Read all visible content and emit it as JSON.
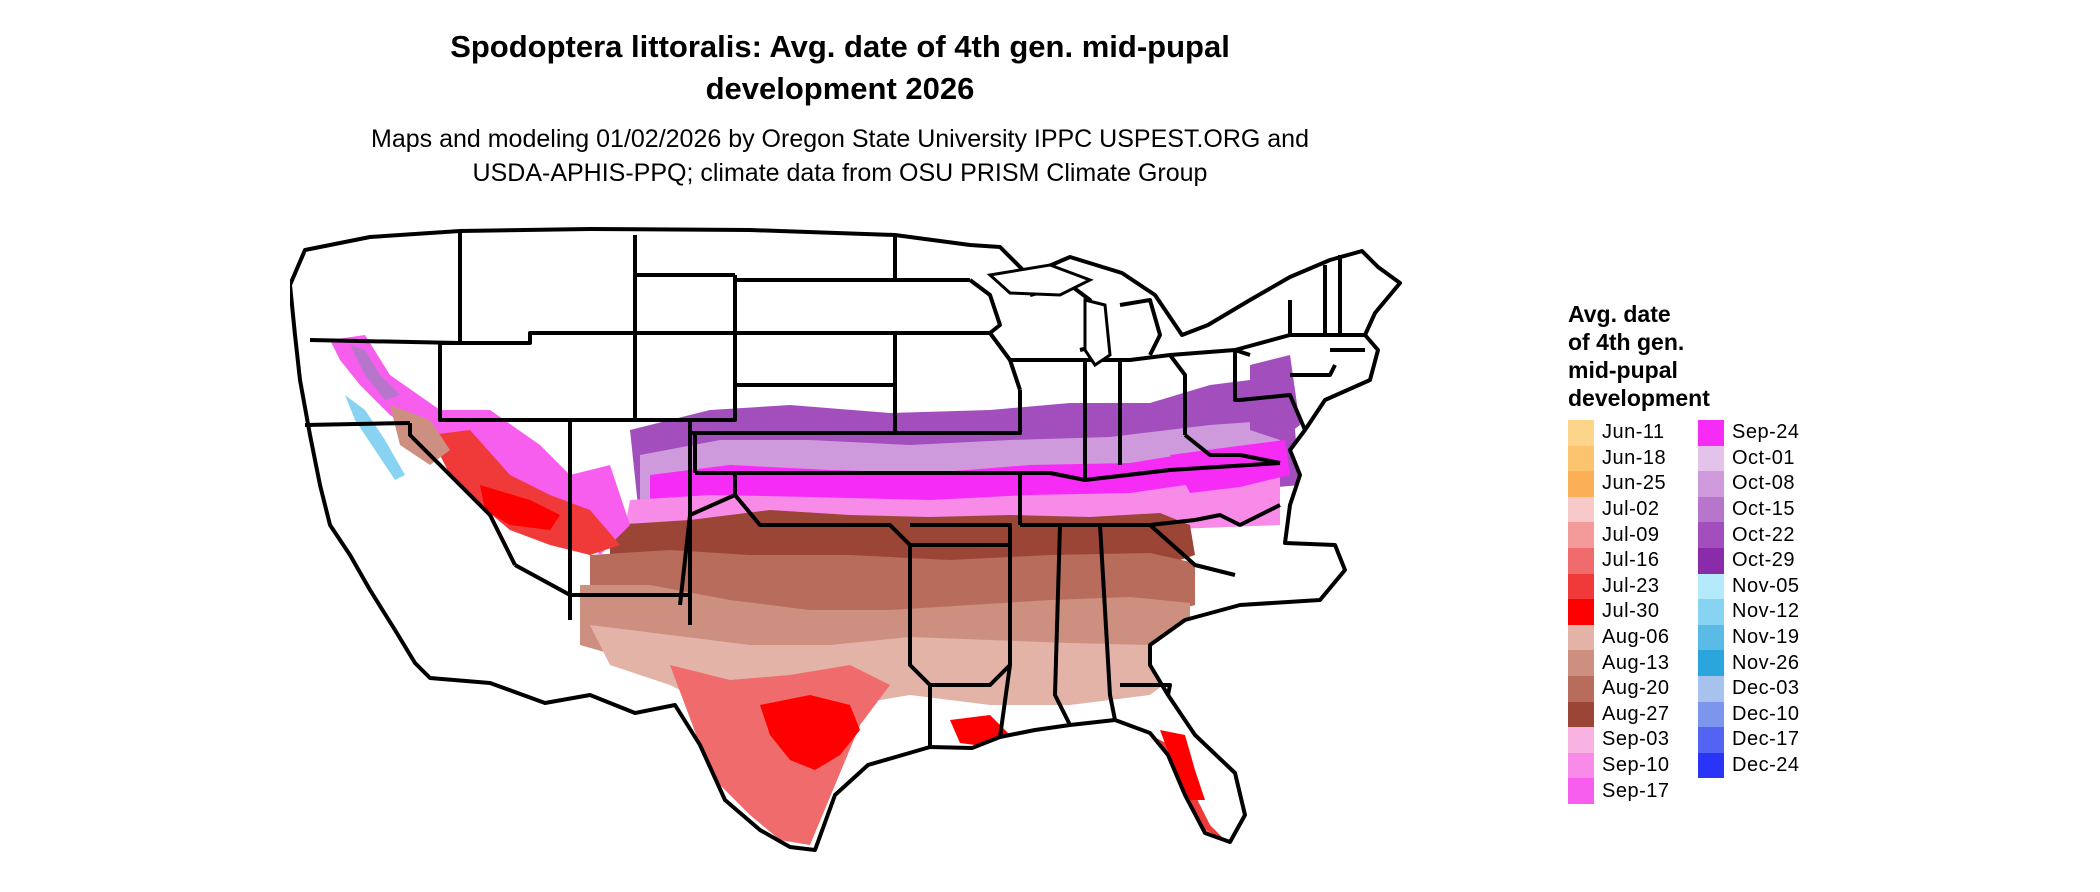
{
  "title_line1": "Spodoptera littoralis: Avg. date of 4th gen. mid-pupal",
  "title_line2": "development 2026",
  "subtitle_line1": "Maps and modeling 01/02/2026 by Oregon State University IPPC USPEST.ORG and",
  "subtitle_line2": "USDA-APHIS-PPQ; climate data from OSU PRISM Climate Group",
  "legend": {
    "title_lines": [
      "Avg. date",
      "of 4th gen.",
      "mid-pupal",
      "development"
    ],
    "items": [
      {
        "label": "Jun-11",
        "color": "#FDD58A"
      },
      {
        "label": "Jun-18",
        "color": "#FCC46E"
      },
      {
        "label": "Jun-25",
        "color": "#FBAF57"
      },
      {
        "label": "Jul-02",
        "color": "#F7C9C9"
      },
      {
        "label": "Jul-09",
        "color": "#F39A9A"
      },
      {
        "label": "Jul-16",
        "color": "#F06B6B"
      },
      {
        "label": "Jul-23",
        "color": "#F03A3A"
      },
      {
        "label": "Jul-30",
        "color": "#FF0000"
      },
      {
        "label": "Aug-06",
        "color": "#E3B3A8"
      },
      {
        "label": "Aug-13",
        "color": "#CD8F80"
      },
      {
        "label": "Aug-20",
        "color": "#B86C5C"
      },
      {
        "label": "Aug-27",
        "color": "#9B4536"
      },
      {
        "label": "Sep-03",
        "color": "#F9B3E3"
      },
      {
        "label": "Sep-10",
        "color": "#F98BE8"
      },
      {
        "label": "Sep-17",
        "color": "#F85EEE"
      },
      {
        "label": "Sep-24",
        "color": "#F72BF6"
      },
      {
        "label": "Oct-01",
        "color": "#E3C3E9"
      },
      {
        "label": "Oct-08",
        "color": "#CE9ADB"
      },
      {
        "label": "Oct-15",
        "color": "#B875CC"
      },
      {
        "label": "Oct-22",
        "color": "#A24FBD"
      },
      {
        "label": "Oct-29",
        "color": "#8A2BAA"
      },
      {
        "label": "Nov-05",
        "color": "#B5EAFB"
      },
      {
        "label": "Nov-12",
        "color": "#88D3F1"
      },
      {
        "label": "Nov-19",
        "color": "#5ABCE6"
      },
      {
        "label": "Nov-26",
        "color": "#2BA6DC"
      },
      {
        "label": "Dec-03",
        "color": "#A7C2EC"
      },
      {
        "label": "Dec-10",
        "color": "#7C95ED"
      },
      {
        "label": "Dec-17",
        "color": "#5264F1"
      },
      {
        "label": "Dec-24",
        "color": "#2A34F6"
      }
    ]
  },
  "colors": {
    "state_border": "#000000",
    "unfilled": "#ffffff"
  }
}
